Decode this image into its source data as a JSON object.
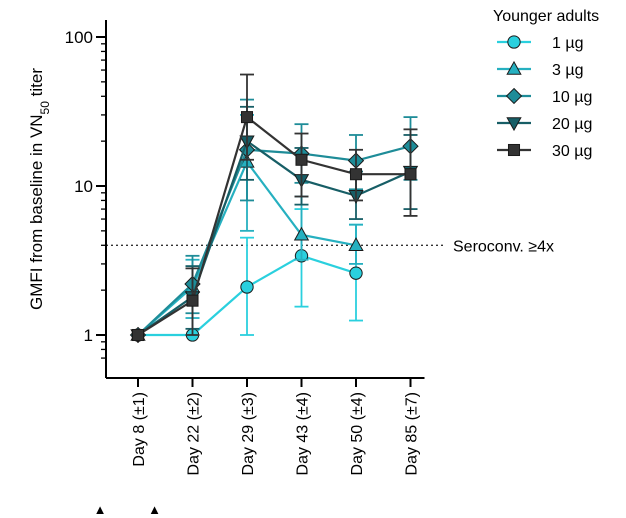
{
  "chart_data": {
    "type": "line",
    "ylabel": "GMFI from baseline in VN50 titer",
    "ylabel_main": "GMFI from baseline in VN",
    "ylabel_sub": "50",
    "ylabel_tail": " titer",
    "yscale": "log",
    "ylim": [
      0.65,
      100
    ],
    "yticks": [
      1,
      10,
      100
    ],
    "ytick_labels": [
      "1",
      "10",
      "100"
    ],
    "categories": [
      "Day 8 (±1)",
      "Day 22 (±2)",
      "Day 29 (±3)",
      "Day 43 (±4)",
      "Day 50 (±4)",
      "Day 85 (±7)"
    ],
    "vaccination_markers": [
      "▲",
      "▲"
    ],
    "vaccination_marker_categories": [
      0,
      1
    ],
    "legend": {
      "title": "Younger adults",
      "position": "top-right"
    },
    "reference_line": {
      "y": 4,
      "label": "Seroconv. ≥4x",
      "style": "dotted"
    },
    "series": [
      {
        "name": "1 µg",
        "marker": "circle",
        "color": "#2ad0de",
        "values": [
          1.0,
          1.0,
          2.1,
          3.4,
          2.6,
          null
        ],
        "lower": [
          null,
          null,
          1.0,
          1.55,
          1.25,
          null
        ],
        "upper": [
          null,
          null,
          4.5,
          7.0,
          5.5,
          null
        ]
      },
      {
        "name": "3 µg",
        "marker": "triangle-up",
        "color": "#26b0c0",
        "values": [
          1.0,
          2.1,
          14.5,
          4.7,
          4.0,
          null
        ],
        "lower": [
          null,
          1.3,
          5.0,
          3.2,
          3.0,
          null
        ],
        "upper": [
          null,
          3.2,
          30,
          8.5,
          5.5,
          null
        ]
      },
      {
        "name": "10 µg",
        "marker": "diamond",
        "color": "#1e8c98",
        "values": [
          1.0,
          2.2,
          17.5,
          16.5,
          14.8,
          18.5
        ],
        "lower": [
          null,
          1.4,
          8.0,
          10.5,
          9.5,
          11.0
        ],
        "upper": [
          null,
          3.4,
          38,
          26,
          22,
          29
        ]
      },
      {
        "name": "20 µg",
        "marker": "triangle-down",
        "color": "#175e66",
        "values": [
          1.0,
          1.8,
          20.0,
          11.0,
          8.6,
          12.5
        ],
        "lower": [
          null,
          1.1,
          11.0,
          7.5,
          6.0,
          7.0
        ],
        "upper": [
          null,
          2.9,
          34,
          18,
          12.5,
          22
        ]
      },
      {
        "name": "30 µg",
        "marker": "square",
        "color": "#333333",
        "values": [
          1.0,
          1.7,
          29.0,
          15.0,
          12.0,
          12.0
        ],
        "lower": [
          null,
          1.0,
          15.0,
          8.5,
          8.0,
          6.3
        ],
        "upper": [
          null,
          2.8,
          56,
          22.5,
          17.5,
          24
        ]
      }
    ]
  }
}
